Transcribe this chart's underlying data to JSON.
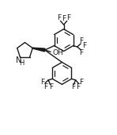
{
  "background": "#ffffff",
  "line_color": "#1a1a1a",
  "lw": 1.0,
  "fs": 6.5,
  "xlim": [
    0,
    10
  ],
  "ylim": [
    0,
    11
  ],
  "figsize": [
    1.48,
    1.7
  ],
  "dpi": 100
}
